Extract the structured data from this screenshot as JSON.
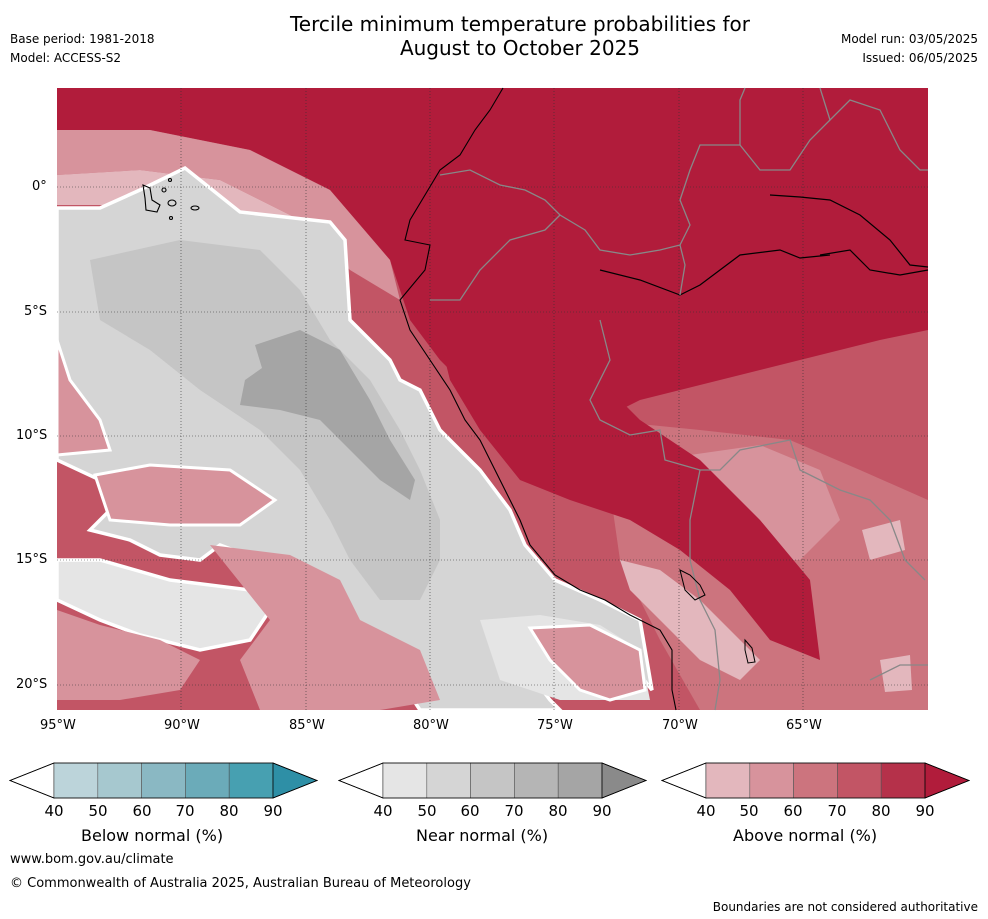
{
  "header": {
    "title_line1": "Tercile minimum temperature probabilities for",
    "title_line2": "August to October 2025",
    "base_period": "Base period: 1981-2018",
    "model": "Model: ACCESS-S2",
    "model_run": "Model run: 03/05/2025",
    "issued": "Issued: 06/05/2025"
  },
  "map": {
    "lat_ticks": [
      "0°",
      "5°S",
      "10°S",
      "15°S",
      "20°S"
    ],
    "lon_ticks": [
      "95°W",
      "90°W",
      "85°W",
      "80°W",
      "75°W",
      "70°W",
      "65°W"
    ]
  },
  "colorbars": [
    {
      "label": "Below normal (%)",
      "ticks": [
        "40",
        "50",
        "60",
        "70",
        "80",
        "90"
      ],
      "colors": [
        "#ffffff",
        "#bcd4da",
        "#a6c8cf",
        "#8ab8c3",
        "#6babb9",
        "#47a0b1",
        "#2e8fa6"
      ]
    },
    {
      "label": "Near normal (%)",
      "ticks": [
        "40",
        "50",
        "60",
        "70",
        "80",
        "90"
      ],
      "colors": [
        "#ffffff",
        "#e5e5e5",
        "#d5d5d5",
        "#c5c5c5",
        "#b5b5b5",
        "#a5a5a5",
        "#8a8a8a"
      ]
    },
    {
      "label": "Above normal (%)",
      "ticks": [
        "40",
        "50",
        "60",
        "70",
        "80",
        "90"
      ],
      "colors": [
        "#ffffff",
        "#e3b7bd",
        "#d7939c",
        "#cc747e",
        "#c25565",
        "#b5314a",
        "#b11c3b"
      ]
    }
  ],
  "footer": {
    "url": "www.bom.gov.au/climate",
    "copyright": "© Commonwealth of Australia 2025, Australian Bureau of Meteorology",
    "disclaimer": "Boundaries are not considered authoritative"
  }
}
